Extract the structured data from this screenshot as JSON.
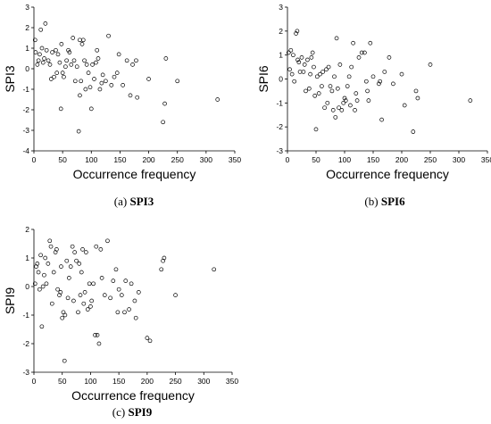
{
  "chart_data": [
    {
      "type": "scatter",
      "ylabel": "SPI3",
      "xlabel": "Occurrence frequency",
      "caption_letter": "(a)",
      "caption_name": "SPI3",
      "xlim": [
        0,
        350
      ],
      "ylim": [
        -4,
        3
      ],
      "xticks": [
        0,
        50,
        100,
        150,
        200,
        250,
        300,
        350
      ],
      "yticks": [
        3,
        2,
        1,
        0,
        -1,
        -2,
        -3,
        -4
      ],
      "grid": false,
      "marker": "open-circle",
      "points": [
        [
          2,
          1.4
        ],
        [
          3,
          0.8
        ],
        [
          6,
          0.2
        ],
        [
          8,
          0.4
        ],
        [
          10,
          0.7
        ],
        [
          12,
          1.9
        ],
        [
          14,
          1.0
        ],
        [
          16,
          0.3
        ],
        [
          18,
          0.5
        ],
        [
          20,
          2.2
        ],
        [
          22,
          0.9
        ],
        [
          25,
          0.4
        ],
        [
          28,
          0.2
        ],
        [
          30,
          -0.5
        ],
        [
          32,
          0.8
        ],
        [
          35,
          -0.4
        ],
        [
          38,
          0.9
        ],
        [
          40,
          -0.2
        ],
        [
          42,
          0.7
        ],
        [
          45,
          0.3
        ],
        [
          47,
          -1.95
        ],
        [
          48,
          1.2
        ],
        [
          50,
          -0.2
        ],
        [
          52,
          -0.4
        ],
        [
          55,
          0.1
        ],
        [
          57,
          0.4
        ],
        [
          60,
          0.9
        ],
        [
          62,
          0.8
        ],
        [
          65,
          0.2
        ],
        [
          68,
          1.5
        ],
        [
          70,
          0.4
        ],
        [
          72,
          -0.6
        ],
        [
          75,
          0.1
        ],
        [
          78,
          -3.05
        ],
        [
          80,
          -1.3
        ],
        [
          80,
          1.4
        ],
        [
          82,
          -0.6
        ],
        [
          84,
          1.2
        ],
        [
          86,
          1.4
        ],
        [
          88,
          0.4
        ],
        [
          90,
          -1.0
        ],
        [
          92,
          0.2
        ],
        [
          95,
          -0.2
        ],
        [
          98,
          -0.9
        ],
        [
          100,
          -1.95
        ],
        [
          102,
          0.2
        ],
        [
          105,
          -0.5
        ],
        [
          108,
          0.3
        ],
        [
          110,
          0.9
        ],
        [
          112,
          0.5
        ],
        [
          115,
          -1.0
        ],
        [
          118,
          -0.7
        ],
        [
          120,
          -0.3
        ],
        [
          125,
          -0.6
        ],
        [
          130,
          1.6
        ],
        [
          135,
          -0.8
        ],
        [
          140,
          -0.4
        ],
        [
          145,
          -0.2
        ],
        [
          148,
          0.7
        ],
        [
          155,
          -0.8
        ],
        [
          162,
          0.4
        ],
        [
          168,
          -1.3
        ],
        [
          172,
          0.2
        ],
        [
          178,
          0.4
        ],
        [
          180,
          -1.4
        ],
        [
          200,
          -0.5
        ],
        [
          225,
          -2.6
        ],
        [
          228,
          -1.7
        ],
        [
          230,
          0.5
        ],
        [
          250,
          -0.6
        ],
        [
          320,
          -1.5
        ]
      ]
    },
    {
      "type": "scatter",
      "ylabel": "SPI6",
      "xlabel": "Occurrence frequency",
      "caption_letter": "(b)",
      "caption_name": "SPI6",
      "xlim": [
        0,
        350
      ],
      "ylim": [
        -3,
        3
      ],
      "xticks": [
        0,
        50,
        100,
        150,
        200,
        250,
        300,
        350
      ],
      "yticks": [
        3,
        2,
        1,
        0,
        -1,
        -2,
        -3
      ],
      "grid": false,
      "marker": "open-circle",
      "points": [
        [
          2,
          1.1
        ],
        [
          4,
          0.4
        ],
        [
          6,
          1.2
        ],
        [
          8,
          0.2
        ],
        [
          10,
          1.0
        ],
        [
          12,
          -0.1
        ],
        [
          15,
          1.9
        ],
        [
          17,
          2.0
        ],
        [
          18,
          0.8
        ],
        [
          20,
          0.7
        ],
        [
          22,
          0.3
        ],
        [
          25,
          0.9
        ],
        [
          28,
          0.3
        ],
        [
          30,
          0.6
        ],
        [
          32,
          -0.5
        ],
        [
          35,
          0.8
        ],
        [
          38,
          -0.4
        ],
        [
          40,
          0.2
        ],
        [
          42,
          0.9
        ],
        [
          44,
          1.1
        ],
        [
          46,
          0.5
        ],
        [
          48,
          -0.7
        ],
        [
          50,
          -2.1
        ],
        [
          52,
          0.1
        ],
        [
          55,
          -0.6
        ],
        [
          57,
          0.2
        ],
        [
          60,
          -0.3
        ],
        [
          62,
          0.3
        ],
        [
          65,
          -1.2
        ],
        [
          68,
          0.4
        ],
        [
          70,
          -1.0
        ],
        [
          72,
          0.5
        ],
        [
          75,
          -0.3
        ],
        [
          78,
          -0.5
        ],
        [
          80,
          -1.3
        ],
        [
          82,
          0.1
        ],
        [
          84,
          -1.6
        ],
        [
          86,
          1.7
        ],
        [
          88,
          -0.4
        ],
        [
          90,
          -1.2
        ],
        [
          92,
          0.6
        ],
        [
          95,
          -1.3
        ],
        [
          98,
          -1.0
        ],
        [
          100,
          -0.8
        ],
        [
          102,
          -0.9
        ],
        [
          105,
          -0.3
        ],
        [
          108,
          0.1
        ],
        [
          110,
          -1.1
        ],
        [
          112,
          0.5
        ],
        [
          115,
          1.5
        ],
        [
          118,
          -1.3
        ],
        [
          120,
          -0.6
        ],
        [
          122,
          -0.9
        ],
        [
          125,
          0.9
        ],
        [
          130,
          1.1
        ],
        [
          135,
          1.1
        ],
        [
          138,
          -0.1
        ],
        [
          140,
          -0.5
        ],
        [
          142,
          -0.9
        ],
        [
          145,
          1.5
        ],
        [
          150,
          0.1
        ],
        [
          160,
          -0.2
        ],
        [
          162,
          -0.1
        ],
        [
          165,
          -1.7
        ],
        [
          170,
          0.3
        ],
        [
          178,
          0.9
        ],
        [
          185,
          -0.2
        ],
        [
          200,
          0.2
        ],
        [
          205,
          -1.1
        ],
        [
          220,
          -2.2
        ],
        [
          225,
          -0.5
        ],
        [
          228,
          -0.8
        ],
        [
          250,
          0.6
        ],
        [
          320,
          -0.9
        ]
      ]
    },
    {
      "type": "scatter",
      "ylabel": "SPI9",
      "xlabel": "Occurrence frequency",
      "caption_letter": "(c)",
      "caption_name": "SPI9",
      "xlim": [
        0,
        350
      ],
      "ylim": [
        -3,
        2
      ],
      "xticks": [
        0,
        50,
        100,
        150,
        200,
        250,
        300,
        350
      ],
      "yticks": [
        2,
        1,
        0,
        -1,
        -2,
        -3
      ],
      "grid": false,
      "marker": "open-circle",
      "points": [
        [
          2,
          0.1
        ],
        [
          4,
          0.7
        ],
        [
          6,
          0.8
        ],
        [
          8,
          0.5
        ],
        [
          10,
          -0.1
        ],
        [
          12,
          1.1
        ],
        [
          14,
          -1.4
        ],
        [
          16,
          0.0
        ],
        [
          18,
          0.4
        ],
        [
          20,
          1.0
        ],
        [
          22,
          0.1
        ],
        [
          25,
          0.8
        ],
        [
          28,
          1.6
        ],
        [
          30,
          1.4
        ],
        [
          32,
          -0.6
        ],
        [
          35,
          0.5
        ],
        [
          38,
          1.2
        ],
        [
          40,
          1.3
        ],
        [
          42,
          -0.1
        ],
        [
          45,
          -0.3
        ],
        [
          47,
          -0.2
        ],
        [
          48,
          0.7
        ],
        [
          50,
          -1.1
        ],
        [
          52,
          -0.9
        ],
        [
          54,
          -2.6
        ],
        [
          55,
          -1.0
        ],
        [
          58,
          0.9
        ],
        [
          60,
          -0.4
        ],
        [
          62,
          0.3
        ],
        [
          65,
          0.7
        ],
        [
          68,
          1.4
        ],
        [
          70,
          -0.5
        ],
        [
          72,
          1.2
        ],
        [
          75,
          0.9
        ],
        [
          78,
          -0.9
        ],
        [
          80,
          0.8
        ],
        [
          82,
          -0.3
        ],
        [
          84,
          0.5
        ],
        [
          86,
          1.3
        ],
        [
          88,
          -0.6
        ],
        [
          90,
          -0.2
        ],
        [
          92,
          1.2
        ],
        [
          95,
          -0.8
        ],
        [
          98,
          0.1
        ],
        [
          100,
          -0.7
        ],
        [
          102,
          -0.5
        ],
        [
          105,
          0.1
        ],
        [
          108,
          -1.7
        ],
        [
          110,
          1.4
        ],
        [
          112,
          -1.7
        ],
        [
          115,
          -2.0
        ],
        [
          118,
          1.3
        ],
        [
          120,
          0.3
        ],
        [
          125,
          -0.3
        ],
        [
          130,
          1.6
        ],
        [
          135,
          -0.4
        ],
        [
          140,
          0.2
        ],
        [
          145,
          0.6
        ],
        [
          148,
          -0.9
        ],
        [
          150,
          -0.1
        ],
        [
          155,
          -0.3
        ],
        [
          160,
          -0.9
        ],
        [
          162,
          0.2
        ],
        [
          168,
          -0.8
        ],
        [
          172,
          0.1
        ],
        [
          178,
          -0.5
        ],
        [
          180,
          -1.1
        ],
        [
          185,
          -0.2
        ],
        [
          200,
          -1.8
        ],
        [
          205,
          -1.9
        ],
        [
          225,
          0.6
        ],
        [
          228,
          0.9
        ],
        [
          230,
          1.0
        ],
        [
          250,
          -0.3
        ],
        [
          318,
          0.6
        ]
      ]
    }
  ]
}
